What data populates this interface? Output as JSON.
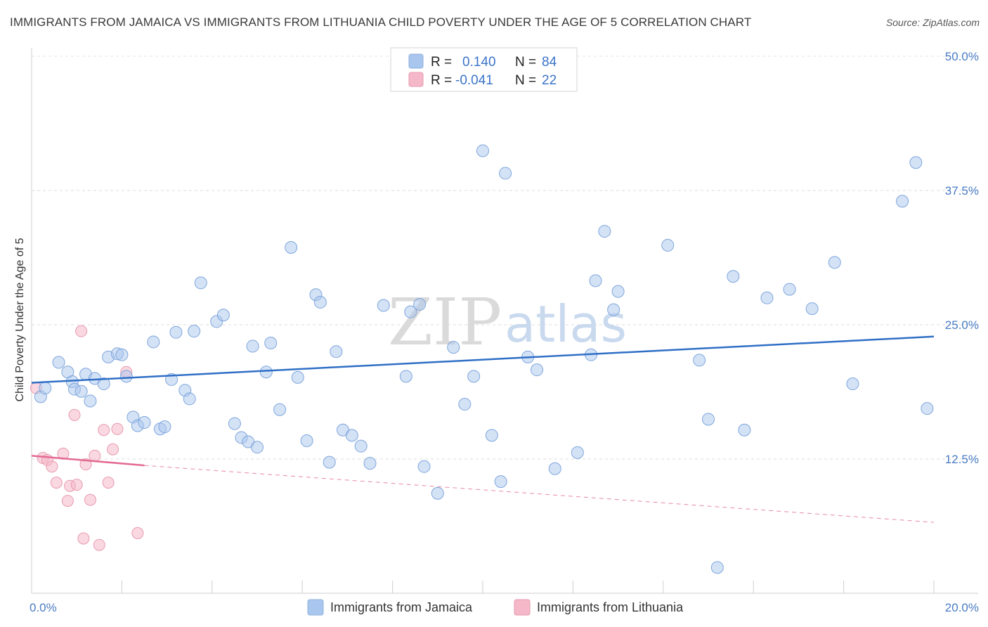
{
  "header": {
    "title": "IMMIGRANTS FROM JAMAICA VS IMMIGRANTS FROM LITHUANIA CHILD POVERTY UNDER THE AGE OF 5 CORRELATION CHART",
    "source": "Source: ZipAtlas.com"
  },
  "watermark": {
    "zip": "ZIP",
    "atlas": "atlas"
  },
  "legend_top": {
    "rows": [
      {
        "r_label": "R =",
        "r_value": "0.140",
        "n_label": "N =",
        "n_value": "84",
        "color": "#a9c6ee"
      },
      {
        "r_label": "R =",
        "r_value": "-0.041",
        "n_label": "N =",
        "n_value": "22",
        "color": "#f5b8c8"
      }
    ]
  },
  "legend_bottom": {
    "items": [
      {
        "label": "Immigrants from Jamaica",
        "color": "#a9c6ee"
      },
      {
        "label": "Immigrants from Lithuania",
        "color": "#f5b8c8"
      }
    ]
  },
  "chart_data": {
    "type": "scatter",
    "title": "IMMIGRANTS FROM JAMAICA VS IMMIGRANTS FROM LITHUANIA CHILD POVERTY UNDER THE AGE OF 5 CORRELATION CHART",
    "xlabel": "",
    "ylabel": "Child Poverty Under the Age of 5",
    "xlim": [
      0,
      20
    ],
    "ylim": [
      0,
      50
    ],
    "x_tick_labels": [
      {
        "value": 0,
        "label": "0.0%"
      },
      {
        "value": 20,
        "label": "20.0%"
      }
    ],
    "y_tick_labels": [
      {
        "value": 12.5,
        "label": "12.5%"
      },
      {
        "value": 25,
        "label": "25.0%"
      },
      {
        "value": 37.5,
        "label": "37.5%"
      },
      {
        "value": 50,
        "label": "50.0%"
      }
    ],
    "colors": {
      "jamaica_fill": "#a9c6ee",
      "jamaica_line": "#2f6fc6",
      "lithuania_fill": "#f5b8c8",
      "lithuania_line": "#e46a93"
    },
    "series": [
      {
        "name": "Immigrants from Jamaica",
        "r": 0.14,
        "n": 84,
        "trend": {
          "x0": 0,
          "y0": 19.6,
          "x1": 20,
          "y1": 23.9
        },
        "points": [
          [
            0.2,
            18.3
          ],
          [
            0.3,
            19.1
          ],
          [
            0.6,
            21.5
          ],
          [
            0.8,
            20.6
          ],
          [
            0.9,
            19.7
          ],
          [
            0.95,
            19.0
          ],
          [
            1.1,
            18.8
          ],
          [
            1.2,
            20.4
          ],
          [
            1.3,
            17.9
          ],
          [
            1.4,
            20.0
          ],
          [
            1.6,
            19.5
          ],
          [
            1.7,
            22.0
          ],
          [
            1.9,
            22.3
          ],
          [
            2.0,
            22.2
          ],
          [
            2.1,
            20.2
          ],
          [
            2.25,
            16.4
          ],
          [
            2.35,
            15.6
          ],
          [
            2.5,
            15.9
          ],
          [
            2.7,
            23.4
          ],
          [
            2.85,
            15.3
          ],
          [
            2.95,
            15.5
          ],
          [
            3.1,
            19.9
          ],
          [
            3.2,
            24.3
          ],
          [
            3.4,
            18.9
          ],
          [
            3.5,
            18.1
          ],
          [
            3.6,
            24.4
          ],
          [
            3.75,
            28.9
          ],
          [
            4.1,
            25.3
          ],
          [
            4.25,
            25.9
          ],
          [
            4.5,
            15.8
          ],
          [
            4.65,
            14.5
          ],
          [
            4.8,
            14.1
          ],
          [
            4.9,
            23.0
          ],
          [
            5.0,
            13.6
          ],
          [
            5.2,
            20.6
          ],
          [
            5.3,
            23.3
          ],
          [
            5.5,
            17.1
          ],
          [
            5.75,
            32.2
          ],
          [
            5.9,
            20.1
          ],
          [
            6.1,
            14.2
          ],
          [
            6.3,
            27.8
          ],
          [
            6.4,
            27.1
          ],
          [
            6.6,
            12.2
          ],
          [
            6.75,
            22.5
          ],
          [
            6.9,
            15.2
          ],
          [
            7.1,
            14.7
          ],
          [
            7.3,
            13.7
          ],
          [
            7.5,
            12.1
          ],
          [
            7.8,
            26.8
          ],
          [
            8.3,
            20.2
          ],
          [
            8.4,
            26.2
          ],
          [
            8.6,
            26.9
          ],
          [
            8.7,
            11.8
          ],
          [
            9.0,
            9.3
          ],
          [
            9.35,
            22.9
          ],
          [
            9.6,
            17.6
          ],
          [
            9.8,
            20.2
          ],
          [
            10.0,
            41.2
          ],
          [
            10.2,
            14.7
          ],
          [
            10.4,
            10.4
          ],
          [
            10.5,
            39.1
          ],
          [
            11.0,
            22.0
          ],
          [
            11.2,
            20.8
          ],
          [
            11.6,
            11.6
          ],
          [
            12.1,
            13.1
          ],
          [
            12.4,
            22.2
          ],
          [
            12.5,
            29.1
          ],
          [
            12.7,
            33.7
          ],
          [
            12.9,
            26.4
          ],
          [
            13.0,
            28.1
          ],
          [
            14.8,
            21.7
          ],
          [
            15.0,
            16.2
          ],
          [
            14.1,
            32.4
          ],
          [
            15.2,
            2.4
          ],
          [
            15.55,
            29.5
          ],
          [
            15.8,
            15.2
          ],
          [
            16.3,
            27.5
          ],
          [
            16.8,
            28.3
          ],
          [
            17.3,
            26.5
          ],
          [
            17.8,
            30.8
          ],
          [
            18.2,
            19.5
          ],
          [
            19.3,
            36.5
          ],
          [
            19.6,
            40.1
          ],
          [
            19.85,
            17.2
          ]
        ]
      },
      {
        "name": "Immigrants from Lithuania",
        "r": -0.041,
        "n": 22,
        "trend": {
          "x0": 0,
          "y0": 12.8,
          "x1": 2.5,
          "y1": 11.9,
          "x_dash_end": 20,
          "y_dash_end": 6.6
        },
        "points": [
          [
            0.1,
            19.1
          ],
          [
            0.25,
            12.6
          ],
          [
            0.35,
            12.4
          ],
          [
            0.45,
            11.8
          ],
          [
            0.55,
            10.3
          ],
          [
            0.7,
            13.0
          ],
          [
            0.8,
            8.6
          ],
          [
            0.85,
            10.0
          ],
          [
            0.95,
            16.6
          ],
          [
            1.0,
            10.1
          ],
          [
            1.15,
            5.1
          ],
          [
            1.2,
            12.0
          ],
          [
            1.3,
            8.7
          ],
          [
            1.4,
            12.8
          ],
          [
            1.5,
            4.5
          ],
          [
            1.6,
            15.2
          ],
          [
            1.7,
            10.3
          ],
          [
            1.8,
            13.4
          ],
          [
            1.9,
            15.3
          ],
          [
            2.1,
            20.6
          ],
          [
            2.35,
            5.6
          ],
          [
            1.1,
            24.4
          ]
        ]
      }
    ]
  }
}
